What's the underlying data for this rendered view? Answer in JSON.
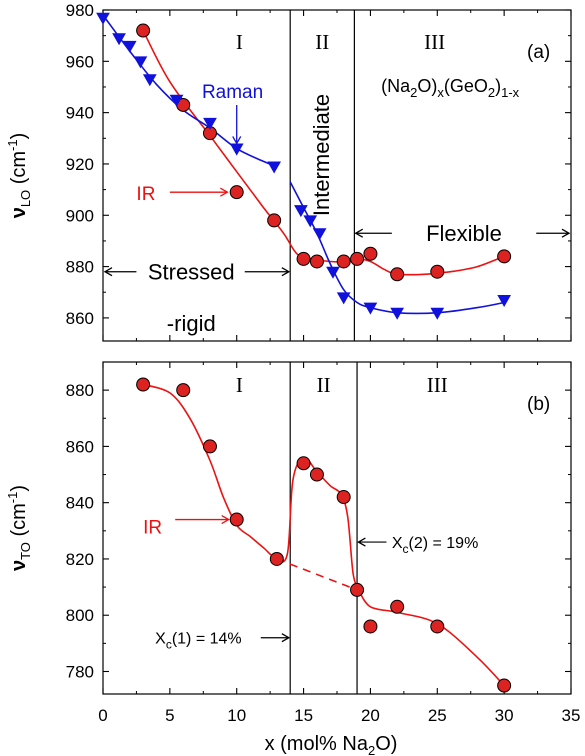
{
  "colors": {
    "ir": "#ee1111",
    "raman": "#1111dd",
    "axis": "#000000",
    "marker_fill": "#dd2222"
  },
  "chart_data": [
    {
      "panel_label": "(a)",
      "type": "line",
      "xlim": [
        0,
        35
      ],
      "ylim": [
        851,
        980
      ],
      "yticks": [
        860,
        880,
        900,
        920,
        940,
        960,
        980
      ],
      "ylabel": {
        "main": "ν",
        "sub": "LO",
        "unit": " (cm",
        "sup": "-1",
        "close": ")"
      },
      "regions": [
        "I",
        "II",
        "III"
      ],
      "boundaries": [
        14,
        18.8
      ],
      "formula": "(Na2O)x(GeO2)1-x",
      "annotations": {
        "raman": "Raman",
        "ir": "IR",
        "intermediate": "Intermediate",
        "flexible": "Flexible",
        "stressed_1": "Stressed",
        "stressed_2": "-rigid"
      },
      "series": [
        {
          "name": "IR",
          "marker": "circle",
          "x": [
            3,
            6,
            8,
            10,
            12.8,
            15,
            16,
            18,
            19,
            20,
            22,
            25,
            30
          ],
          "y": [
            972,
            943,
            932,
            909,
            898,
            883,
            882,
            882,
            883,
            885,
            877,
            878,
            884
          ],
          "fit_x": [
            3,
            5,
            8,
            10,
            12,
            13.5,
            14.5,
            15.5,
            17,
            18,
            19,
            20,
            21,
            22,
            24,
            26,
            28,
            30
          ],
          "fit_y": [
            972,
            952,
            931,
            917,
            903,
            893,
            885,
            883,
            882,
            882,
            883,
            882,
            879,
            877,
            877,
            878,
            880,
            884
          ]
        },
        {
          "name": "Raman",
          "marker": "triangle-down",
          "x": [
            0,
            1.2,
            2,
            2.8,
            3.5,
            5.5,
            8,
            10,
            12.8,
            14.8,
            15.5,
            16.2,
            17.2,
            18,
            20,
            22,
            25,
            30
          ],
          "y": [
            977,
            969,
            966,
            960,
            953,
            945,
            936,
            926,
            919,
            902,
            898,
            893,
            878,
            868,
            864,
            862,
            862,
            867
          ],
          "fit_x": [
            0,
            2,
            4,
            6,
            8,
            10,
            12,
            13
          ],
          "fit_y": [
            978,
            964,
            951,
            941,
            934,
            926,
            921,
            919
          ],
          "fit2_x": [
            14,
            15,
            16,
            17,
            18,
            19,
            20,
            22,
            25,
            28,
            30
          ],
          "fit2_y": [
            913,
            903,
            893,
            881,
            871,
            866,
            864,
            862,
            862,
            864,
            866
          ]
        }
      ]
    },
    {
      "panel_label": "(b)",
      "type": "line",
      "xlim": [
        0,
        35
      ],
      "ylim": [
        772,
        890
      ],
      "yticks": [
        780,
        800,
        820,
        840,
        860,
        880
      ],
      "xticks": [
        0,
        5,
        10,
        15,
        20,
        25,
        30,
        35
      ],
      "xlabel": {
        "main": "x (mol% Na",
        "sub": "2",
        "close": "O)"
      },
      "ylabel": {
        "main": "ν",
        "sub": "TO",
        "unit": " (cm",
        "sup": "-1",
        "close": ")"
      },
      "regions": [
        "I",
        "II",
        "III"
      ],
      "boundaries": [
        14,
        19
      ],
      "annotations": {
        "ir": "IR",
        "xc1": {
          "main": "X",
          "sub": "c",
          "rest": "(1) = 14%"
        },
        "xc2": {
          "main": "X",
          "sub": "c",
          "rest": "(2) = 19%"
        }
      },
      "series": [
        {
          "name": "IR",
          "marker": "circle",
          "x": [
            3,
            6,
            8,
            10,
            13,
            15,
            16,
            18,
            19,
            20,
            22,
            25,
            30
          ],
          "y": [
            882,
            880,
            860,
            834,
            820,
            854,
            850,
            842,
            809,
            796,
            803,
            796,
            775
          ],
          "fit_x": [
            3,
            5,
            6.5,
            8,
            9,
            10,
            11,
            12,
            13,
            13.8,
            14.2,
            15,
            16,
            17,
            17.8,
            18.3,
            18.7,
            19.1
          ],
          "fit_y": [
            882,
            879,
            870,
            855,
            842,
            832,
            828,
            824,
            820,
            822,
            848,
            856,
            851,
            846,
            843,
            835,
            815,
            809
          ],
          "dash_x": [
            13,
            19
          ],
          "dash_y": [
            820,
            809
          ],
          "fit2_x": [
            19.1,
            20,
            22,
            25,
            28,
            30
          ],
          "fit2_y": [
            809,
            803,
            801,
            797,
            785,
            775
          ]
        }
      ]
    }
  ]
}
